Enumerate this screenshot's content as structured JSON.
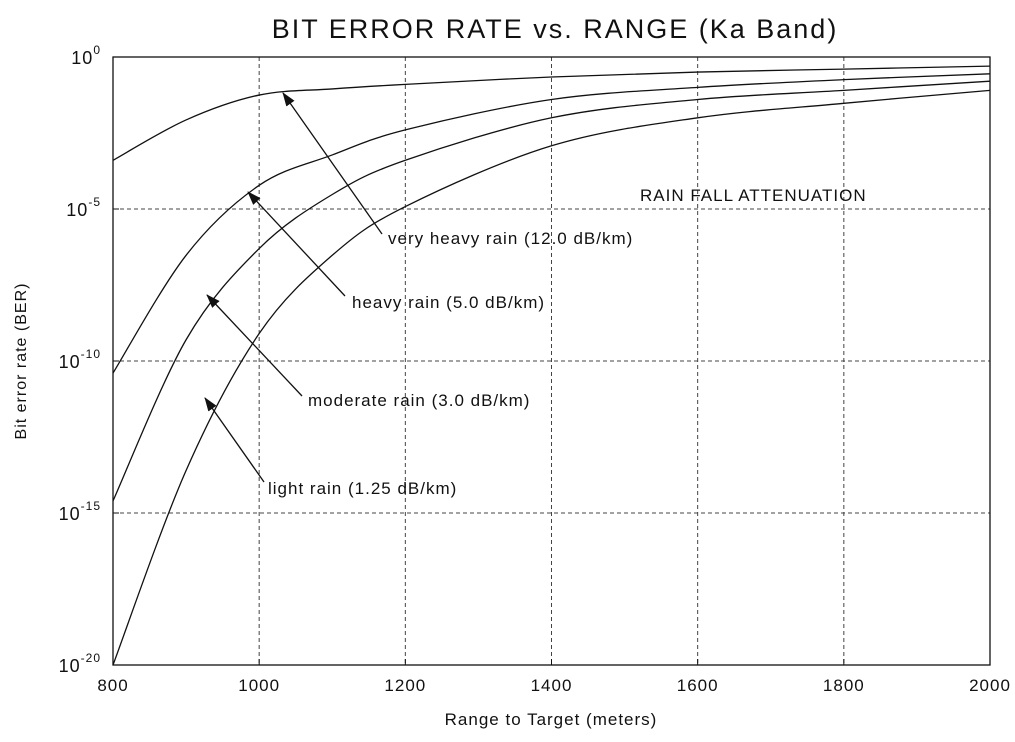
{
  "chart_data": {
    "type": "line",
    "title": "BIT ERROR RATE vs. RANGE (Ka Band)",
    "x_label": "Range to Target (meters)",
    "y_label": "Bit error rate (BER)",
    "x": [
      800,
      900,
      1000,
      1100,
      1200,
      1400,
      1600,
      1800,
      2000
    ],
    "series": [
      {
        "name": "very heavy rain",
        "color": "#111111",
        "values": [
          0.0004,
          0.0085,
          0.056,
          0.089,
          0.126,
          0.22,
          0.32,
          0.4,
          0.5
        ]
      },
      {
        "name": "heavy rain",
        "color": "#111111",
        "values": [
          4e-11,
          3e-07,
          6e-05,
          0.0006,
          0.004,
          0.04,
          0.1,
          0.18,
          0.28
        ]
      },
      {
        "name": "moderate rain",
        "color": "#111111",
        "values": [
          2.5e-15,
          5e-10,
          5e-07,
          3e-05,
          0.0004,
          0.01,
          0.04,
          0.08,
          0.16
        ]
      },
      {
        "name": "light rain",
        "color": "#111111",
        "values": [
          1e-20,
          2.5e-14,
          8e-10,
          3e-07,
          1.2e-05,
          0.0012,
          0.01,
          0.03,
          0.08
        ]
      }
    ],
    "annotations": [
      "RAIN FALL ATTENUATION",
      "very heavy rain (12.0 dB/km)",
      "heavy rain (5.0 dB/km)",
      "moderate rain (3.0 dB/km)",
      "light rain (1.25 dB/km)"
    ],
    "xlim": [
      800,
      2000
    ],
    "xticks": [
      800,
      1000,
      1200,
      1400,
      1600,
      1800,
      2000
    ],
    "ylim": [
      1e-20,
      1
    ],
    "yticks": [
      {
        "value": 1e-20,
        "label": "10",
        "exponent": "-20"
      },
      {
        "value": 1e-15,
        "label": "10",
        "exponent": "-15"
      },
      {
        "value": 1e-10,
        "label": "10",
        "exponent": "-10"
      },
      {
        "value": 1e-05,
        "label": "10",
        "exponent": "-5"
      },
      {
        "value": 1,
        "label": "10",
        "exponent": "0"
      }
    ],
    "y_log": true,
    "grid": true
  }
}
